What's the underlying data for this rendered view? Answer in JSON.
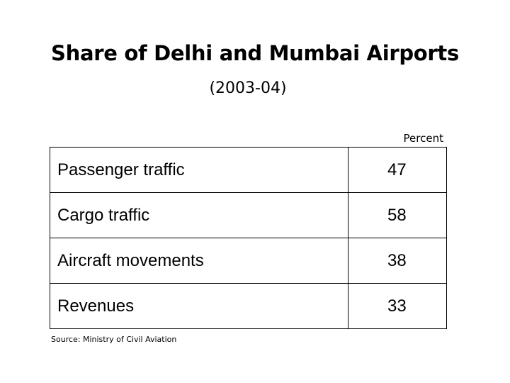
{
  "title": "Share of Delhi and Mumbai Airports",
  "subtitle": "(2003-04)",
  "unit": "Percent",
  "rows": [
    {
      "label": "Passenger traffic",
      "value": "47"
    },
    {
      "label": "Cargo traffic",
      "value": "58"
    },
    {
      "label": "Aircraft movements",
      "value": "38"
    },
    {
      "label": "Revenues",
      "value": "33"
    }
  ],
  "source": "Source: Ministry of Civil Aviation"
}
